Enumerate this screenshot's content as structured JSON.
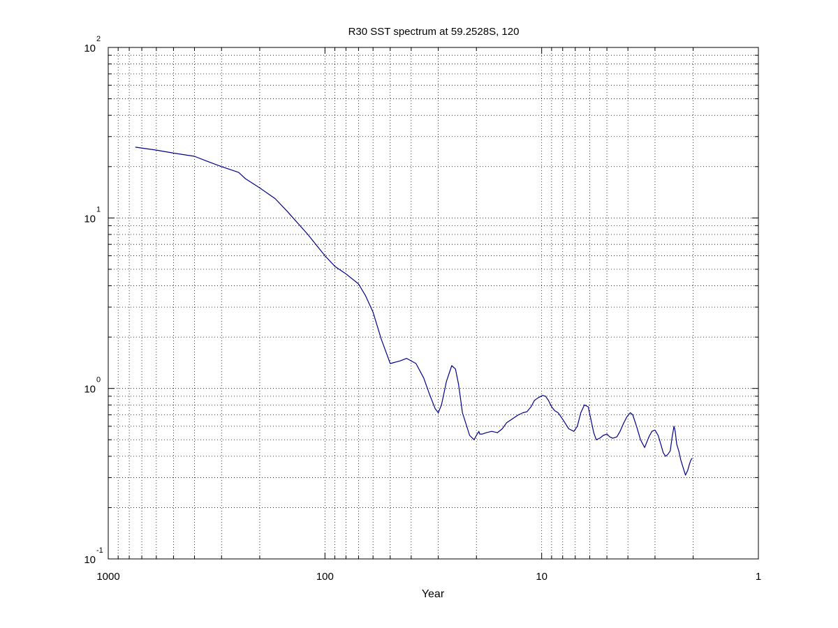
{
  "chart_data": {
    "type": "line",
    "title": "R30 SST spectrum at 59.2528S, 120",
    "xlabel": "Year",
    "ylabel": "",
    "xscale": "log",
    "yscale": "log",
    "x_reversed": true,
    "xlim": [
      1000,
      1
    ],
    "ylim": [
      0.1,
      100
    ],
    "grid": true,
    "legend": "none",
    "x_tick_labels": [
      "1000",
      "100",
      "10",
      "1"
    ],
    "y_tick_labels": [
      {
        "base": "10",
        "exp": "2"
      },
      {
        "base": "10",
        "exp": "1"
      },
      {
        "base": "10",
        "exp": "0"
      },
      {
        "base": "10",
        "exp": "-1"
      }
    ],
    "line_color": "#00008b",
    "series": [
      {
        "x": [
          750,
          600,
          500,
          400,
          350,
          300,
          250,
          233,
          200,
          170,
          150,
          120,
          100,
          90,
          80,
          70,
          65,
          60,
          55,
          50,
          45,
          42,
          38,
          35,
          33,
          31,
          30,
          29,
          27.5,
          26,
          25,
          24.2,
          23.2,
          21.5,
          20.5,
          20,
          19.5,
          19.3,
          18.8,
          18,
          17,
          16,
          15.2,
          14.5,
          13.5,
          12.8,
          12.2,
          11.7,
          11.2,
          10.8,
          10.4,
          9.9,
          9.6,
          9.3,
          9,
          8.7,
          8.4,
          8,
          7.5,
          7.1,
          6.85,
          6.6,
          6.35,
          6.1,
          5.9,
          5.75,
          5.6,
          5.4,
          5.2,
          5,
          4.85,
          4.7,
          4.5,
          4.35,
          4.2,
          4.05,
          3.9,
          3.8,
          3.65,
          3.5,
          3.35,
          3.2,
          3.1,
          3.0,
          2.9,
          2.82,
          2.75,
          2.68,
          2.62,
          2.55,
          2.5,
          2.45,
          2.42,
          2.38,
          2.33,
          2.28,
          2.22,
          2.17,
          2.12,
          2.08,
          2.05,
          2.02
        ],
        "y": [
          26,
          25,
          24,
          23,
          21.5,
          20,
          18.5,
          17,
          15,
          13,
          11,
          8,
          6,
          5.2,
          4.7,
          4.1,
          3.5,
          2.8,
          1.95,
          1.4,
          1.45,
          1.5,
          1.4,
          1.15,
          0.93,
          0.76,
          0.72,
          0.8,
          1.1,
          1.36,
          1.3,
          1.06,
          0.72,
          0.53,
          0.5,
          0.53,
          0.56,
          0.54,
          0.54,
          0.55,
          0.56,
          0.55,
          0.58,
          0.63,
          0.67,
          0.7,
          0.72,
          0.73,
          0.78,
          0.85,
          0.88,
          0.91,
          0.9,
          0.85,
          0.78,
          0.74,
          0.72,
          0.66,
          0.58,
          0.56,
          0.6,
          0.72,
          0.8,
          0.78,
          0.64,
          0.55,
          0.5,
          0.51,
          0.53,
          0.54,
          0.52,
          0.51,
          0.52,
          0.56,
          0.62,
          0.68,
          0.72,
          0.7,
          0.6,
          0.5,
          0.45,
          0.52,
          0.56,
          0.57,
          0.53,
          0.47,
          0.42,
          0.4,
          0.41,
          0.43,
          0.52,
          0.6,
          0.56,
          0.47,
          0.43,
          0.38,
          0.34,
          0.31,
          0.33,
          0.36,
          0.38,
          0.39
        ]
      }
    ]
  }
}
